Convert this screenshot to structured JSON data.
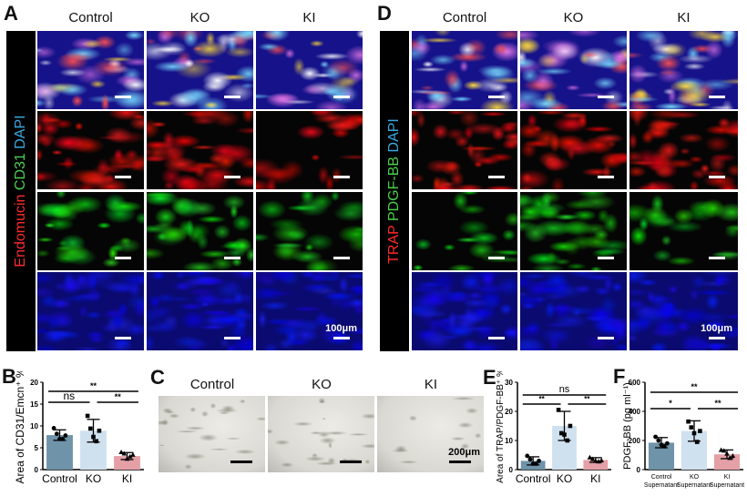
{
  "panels": {
    "A": {
      "letter": "A",
      "columns": [
        "Control",
        "KO",
        "KI"
      ],
      "stain_label": [
        {
          "text": "Endomucin",
          "color": "#ff2a2a"
        },
        {
          "text": " CD31",
          "color": "#4cd04c"
        },
        {
          "text": " DAPI",
          "color": "#3aa8e0"
        }
      ],
      "rows": [
        "merge",
        "Endomucin",
        "CD31",
        "DAPI"
      ],
      "scale_bar": "100μm"
    },
    "D": {
      "letter": "D",
      "columns": [
        "Control",
        "KO",
        "KI"
      ],
      "stain_label": [
        {
          "text": "TRAP",
          "color": "#ff2a2a"
        },
        {
          "text": " PDGF-BB",
          "color": "#4cd04c"
        },
        {
          "text": " DAPI",
          "color": "#3aa8e0"
        }
      ],
      "rows": [
        "merge",
        "TRAP",
        "PDGF-BB",
        "DAPI"
      ],
      "scale_bar": "100μm"
    },
    "B": {
      "letter": "B"
    },
    "C": {
      "letter": "C",
      "columns": [
        "Control",
        "KO",
        "KI"
      ],
      "scale_bar": "200μm"
    },
    "E": {
      "letter": "E"
    },
    "F": {
      "letter": "F"
    }
  },
  "colors": {
    "control_bar": "#6f93a8",
    "ko_bar": "#cfe0ee",
    "ki_bar": "#e4a0a6"
  },
  "chart_data": [
    {
      "panel": "B",
      "type": "bar",
      "title": "",
      "xlabel": "",
      "ylabel": "Area of CD31/Emcn⁺ %",
      "categories": [
        "Control",
        "KO",
        "KI"
      ],
      "values": [
        7.9,
        8.9,
        3.1
      ],
      "error": [
        1.2,
        2.6,
        0.8
      ],
      "points": [
        [
          9.5,
          8.2,
          7.0,
          7.0,
          7.8
        ],
        [
          12.3,
          9.4,
          7.5,
          6.5,
          8.9
        ],
        [
          4.0,
          3.7,
          2.5,
          3.0,
          3.4
        ]
      ],
      "marker": [
        "circle",
        "square",
        "triangle"
      ],
      "ylim": [
        0,
        20
      ],
      "yticks": [
        0,
        5,
        10,
        15,
        20
      ],
      "significance": [
        {
          "from": 0,
          "to": 1,
          "label": "ns"
        },
        {
          "from": 1,
          "to": 2,
          "label": "**"
        },
        {
          "from": 0,
          "to": 2,
          "label": "**"
        }
      ]
    },
    {
      "panel": "E",
      "type": "bar",
      "title": "",
      "xlabel": "",
      "ylabel": "Area of TRAP/PDGF-BB⁺ %",
      "categories": [
        "Control",
        "KO",
        "KI"
      ],
      "values": [
        3.0,
        15.0,
        3.3
      ],
      "error": [
        1.4,
        5.0,
        0.8
      ],
      "points": [
        [
          4.7,
          3.5,
          2.0,
          2.0,
          3.0
        ],
        [
          20.5,
          12.5,
          12.0,
          10.0,
          15.0
        ],
        [
          4.2,
          3.6,
          3.0,
          2.8,
          3.2
        ]
      ],
      "marker": [
        "circle",
        "square",
        "triangle"
      ],
      "ylim": [
        0,
        30
      ],
      "yticks": [
        0,
        10,
        20,
        30
      ],
      "significance": [
        {
          "from": 0,
          "to": 1,
          "label": "**"
        },
        {
          "from": 1,
          "to": 2,
          "label": "**"
        },
        {
          "from": 0,
          "to": 2,
          "label": "ns"
        }
      ]
    },
    {
      "panel": "F",
      "type": "bar",
      "title": "",
      "xlabel": "",
      "ylabel": "PDGF-BB (pg ml⁻¹)",
      "categories": [
        "Control Supernatant",
        "KO Supernatant",
        "KI Supernatant"
      ],
      "category_lines": [
        [
          "Control",
          "Supernatant"
        ],
        [
          "KO",
          "Supernatant"
        ],
        [
          "KI",
          "Supernatant"
        ]
      ],
      "values": [
        185,
        265,
        105
      ],
      "error": [
        35,
        70,
        30
      ],
      "points": [
        [
          225,
          200,
          170,
          160,
          180
        ],
        [
          330,
          290,
          250,
          190,
          265
        ],
        [
          135,
          130,
          110,
          80,
          95
        ]
      ],
      "marker": [
        "circle",
        "square",
        "triangle"
      ],
      "ylim": [
        0,
        600
      ],
      "yticks": [
        0,
        200,
        400,
        600
      ],
      "significance": [
        {
          "from": 0,
          "to": 1,
          "label": "*"
        },
        {
          "from": 1,
          "to": 2,
          "label": "**"
        },
        {
          "from": 0,
          "to": 2,
          "label": "**"
        }
      ]
    }
  ]
}
